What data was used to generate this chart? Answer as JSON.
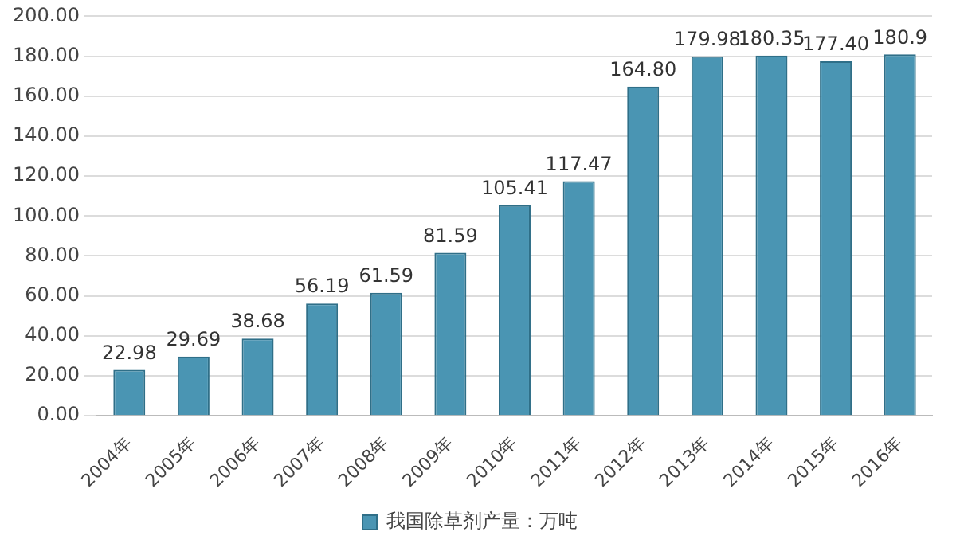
{
  "chart_data": {
    "type": "bar",
    "categories": [
      "2004年",
      "2005年",
      "2006年",
      "2007年",
      "2008年",
      "2009年",
      "2010年",
      "2011年",
      "2012年",
      "2013年",
      "2014年",
      "2015年",
      "2016年"
    ],
    "series": [
      {
        "name": "我国除草剂产量：万吨",
        "color": "#4a95b3",
        "values": [
          22.98,
          29.69,
          38.68,
          56.19,
          61.59,
          81.59,
          105.41,
          117.47,
          164.8,
          179.98,
          180.35,
          177.4,
          180.9
        ],
        "value_labels": [
          "22.98",
          "29.69",
          "38.68",
          "56.19",
          "61.59",
          "81.59",
          "105.41",
          "117.47",
          "164.80",
          "179.98",
          "180.35",
          "177.40",
          "180.9"
        ]
      }
    ],
    "ylim": [
      0,
      200
    ],
    "yticks": [
      {
        "value": 0,
        "label": "0.00"
      },
      {
        "value": 20,
        "label": "20.00"
      },
      {
        "value": 40,
        "label": "40.00"
      },
      {
        "value": 60,
        "label": "60.00"
      },
      {
        "value": 80,
        "label": "80.00"
      },
      {
        "value": 100,
        "label": "100.00"
      },
      {
        "value": 120,
        "label": "120.00"
      },
      {
        "value": 140,
        "label": "140.00"
      },
      {
        "value": 160,
        "label": "160.00"
      },
      {
        "value": 180,
        "label": "180.00"
      },
      {
        "value": 200,
        "label": "200.00"
      }
    ],
    "grid": "y",
    "legend": "bottom"
  }
}
